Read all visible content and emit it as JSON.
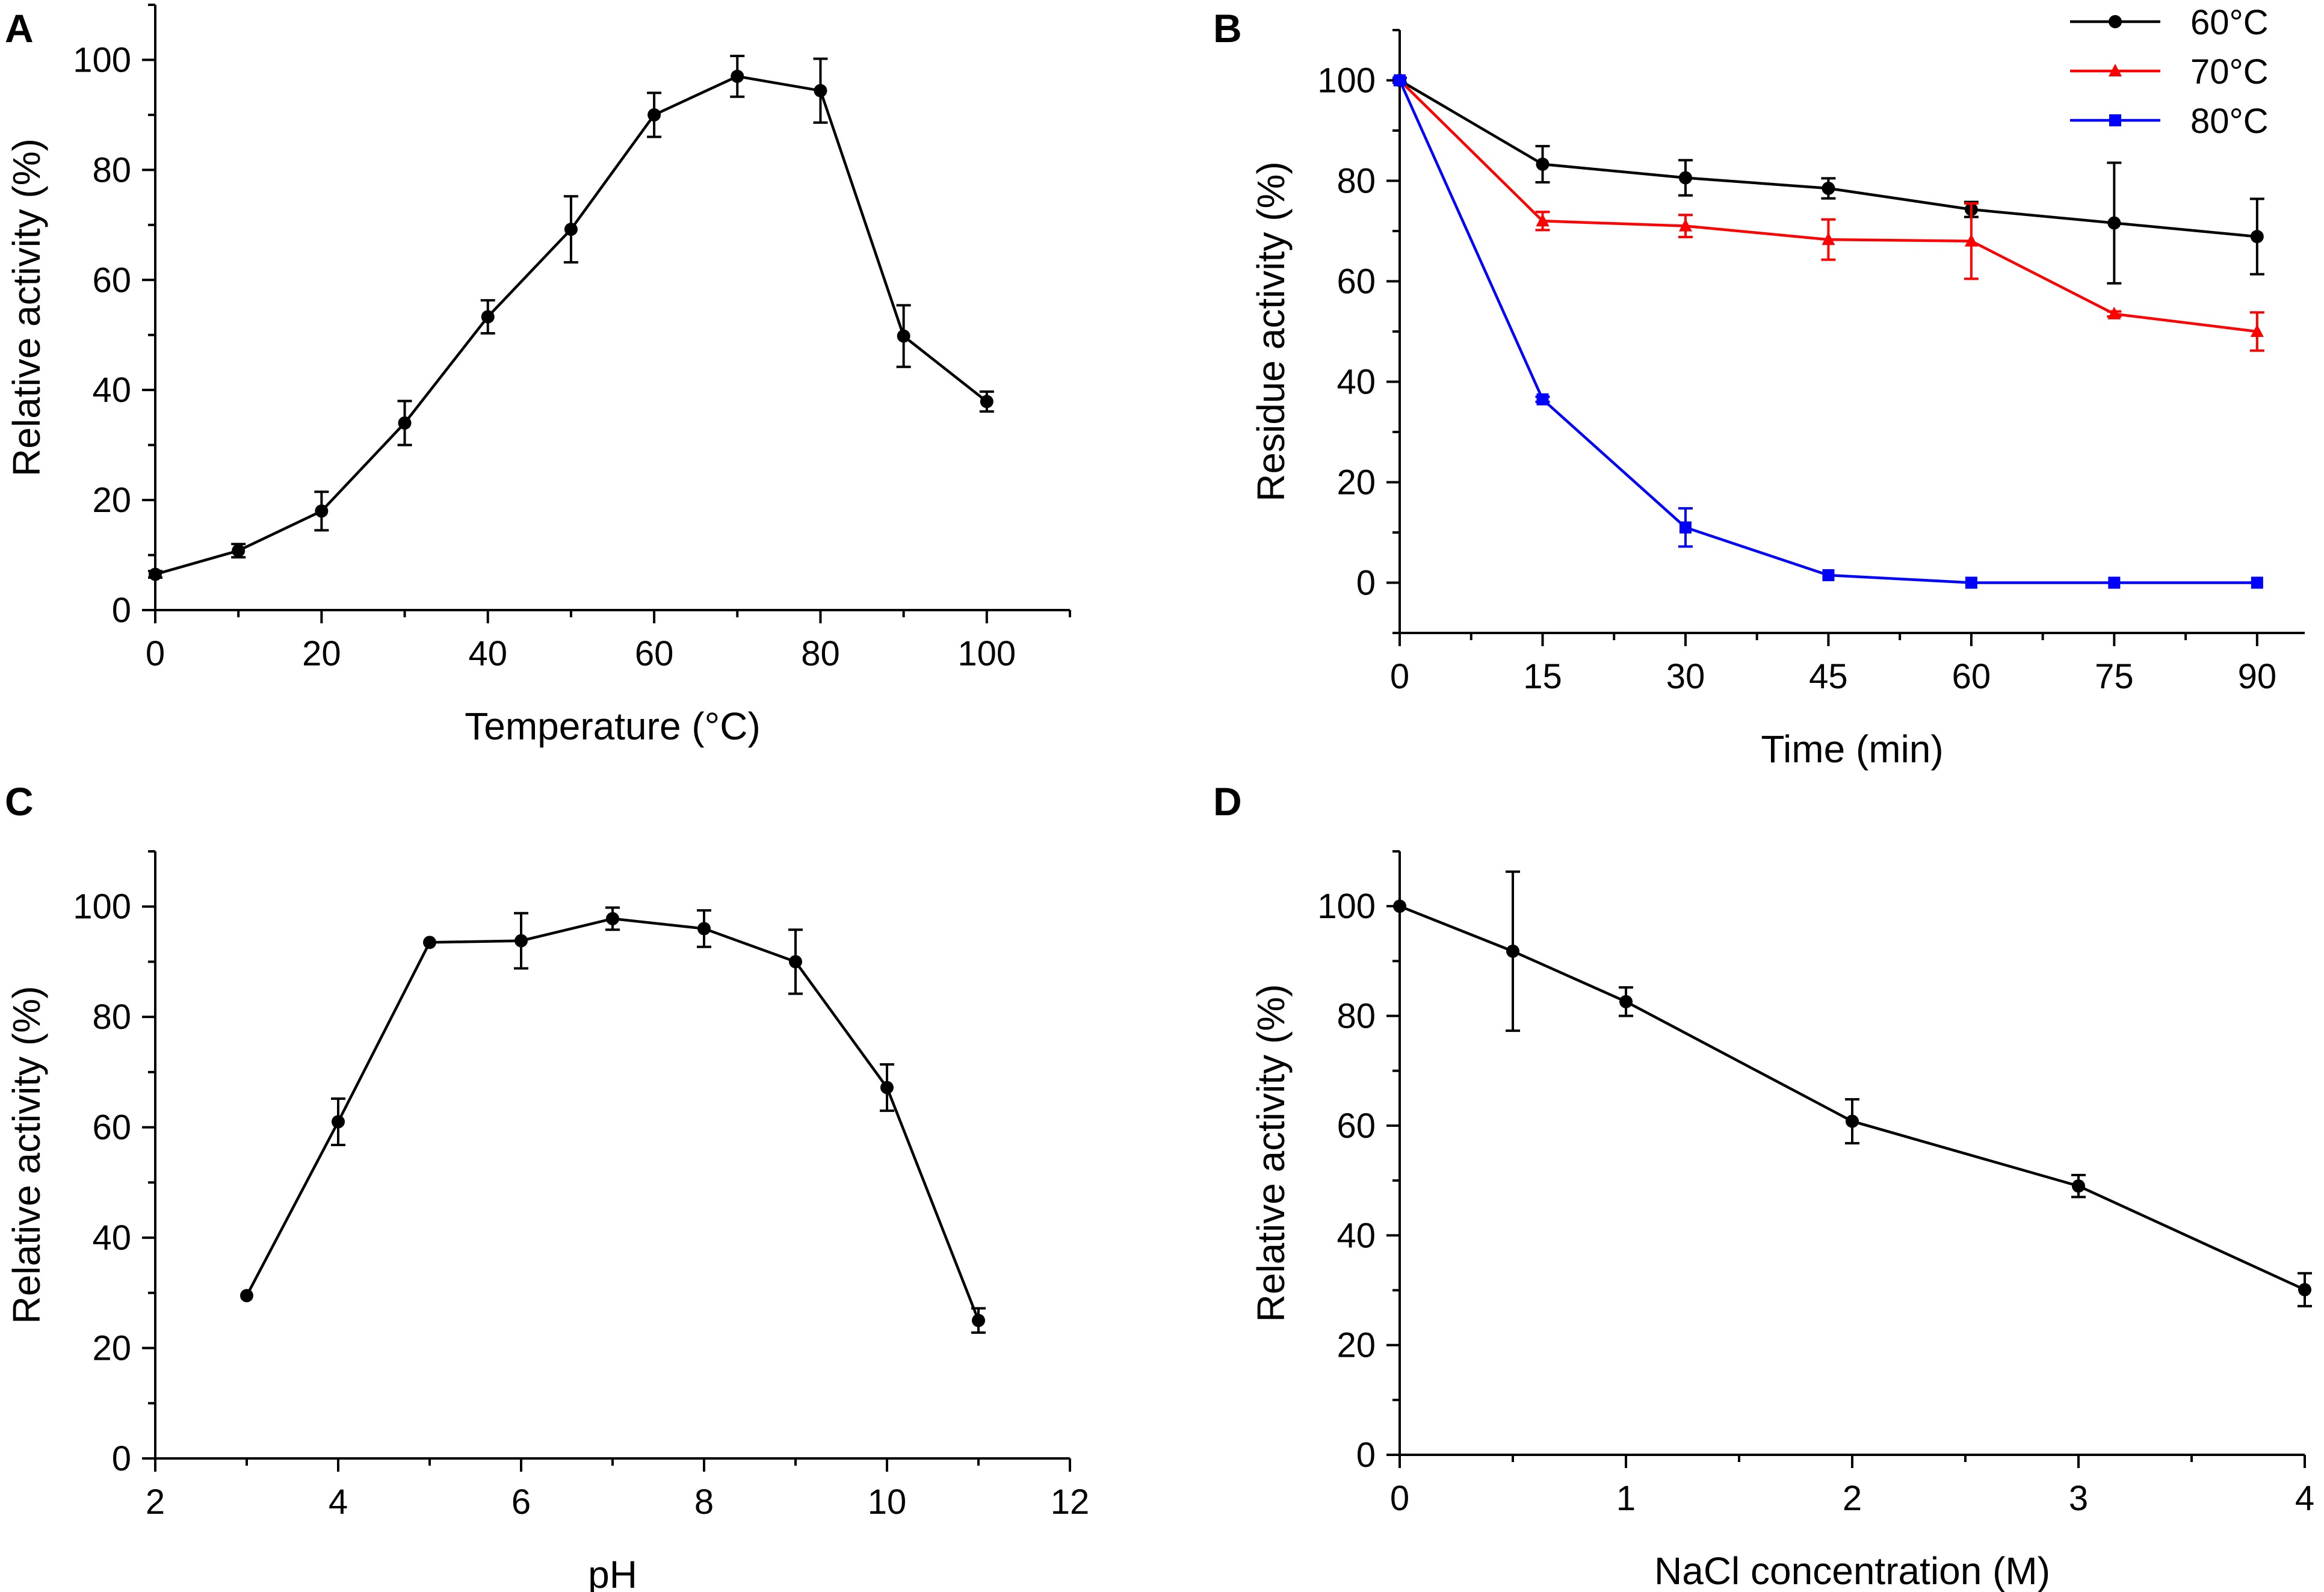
{
  "figure": {
    "panel_count": 4
  },
  "chart_data": [
    {
      "panel": "A",
      "type": "line",
      "xlabel": "Temperature (°C)",
      "ylabel": "Relative activity (%)",
      "xlim": [
        0,
        110
      ],
      "ylim": [
        0,
        110
      ],
      "xticks": [
        0,
        20,
        40,
        60,
        80,
        100
      ],
      "yticks": [
        0,
        20,
        40,
        60,
        80,
        100
      ],
      "series": [
        {
          "name": "",
          "color": "#000000",
          "marker": "circle",
          "x": [
            0,
            10,
            20,
            30,
            40,
            50,
            60,
            70,
            80,
            90,
            100
          ],
          "y": [
            6.5,
            10.8,
            18,
            34,
            53.3,
            69.2,
            90,
            97,
            94.4,
            49.8,
            37.9
          ],
          "err": [
            0.6,
            1.2,
            3.5,
            4,
            3,
            6,
            4,
            3.7,
            5.8,
            5.6,
            1.8
          ]
        }
      ]
    },
    {
      "panel": "B",
      "type": "line",
      "xlabel": "Time (min)",
      "ylabel": "Residue activity (%)",
      "xlim": [
        0,
        95
      ],
      "ylim": [
        -10,
        110
      ],
      "xticks": [
        0,
        15,
        30,
        45,
        60,
        75,
        90
      ],
      "yticks": [
        0,
        20,
        40,
        60,
        80,
        100
      ],
      "legend": "top-right",
      "series": [
        {
          "name": "60°C",
          "color": "#000000",
          "marker": "circle",
          "x": [
            0,
            15,
            30,
            45,
            60,
            75,
            90
          ],
          "y": [
            100,
            83.3,
            80.6,
            78.5,
            74.3,
            71.6,
            68.9
          ],
          "err": [
            0.5,
            3.6,
            3.5,
            2,
            1.5,
            12,
            7.5
          ]
        },
        {
          "name": "70°C",
          "color": "#ff0000",
          "marker": "triangle",
          "x": [
            0,
            15,
            30,
            45,
            60,
            75,
            90
          ],
          "y": [
            100,
            72,
            71,
            68.3,
            68,
            53.5,
            50
          ],
          "err": [
            0.5,
            1.8,
            2.2,
            4,
            7.5,
            0.5,
            3.8
          ]
        },
        {
          "name": "80°C",
          "color": "#0000ff",
          "marker": "square",
          "x": [
            0,
            15,
            30,
            45,
            60,
            75,
            90
          ],
          "y": [
            100,
            36.5,
            11,
            1.5,
            0,
            0,
            0
          ],
          "err": [
            0.5,
            0.5,
            3.8,
            0.3,
            0.2,
            0.2,
            0.2
          ]
        }
      ]
    },
    {
      "panel": "C",
      "type": "line",
      "xlabel": "pH",
      "ylabel": "Relative activity (%)",
      "xlim": [
        2,
        12
      ],
      "ylim": [
        0,
        110
      ],
      "xticks": [
        2,
        4,
        6,
        8,
        10,
        12
      ],
      "yticks": [
        0,
        20,
        40,
        60,
        80,
        100
      ],
      "series": [
        {
          "name": "",
          "color": "#000000",
          "marker": "circle",
          "x": [
            3,
            4,
            5,
            6,
            7,
            8,
            9,
            10,
            11
          ],
          "y": [
            29.5,
            61,
            93.5,
            93.8,
            97.8,
            96,
            90,
            67.2,
            25
          ],
          "err": [
            0.3,
            4.2,
            0.3,
            5,
            2,
            3.3,
            5.8,
            4.2,
            2.2
          ]
        }
      ]
    },
    {
      "panel": "D",
      "type": "line",
      "xlabel": "NaCl concentration (M)",
      "ylabel": "Relative activity (%)",
      "xlim": [
        0,
        4
      ],
      "ylim": [
        0,
        110
      ],
      "xticks": [
        0,
        1,
        2,
        3,
        4
      ],
      "yticks": [
        0,
        20,
        40,
        60,
        80,
        100
      ],
      "series": [
        {
          "name": "",
          "color": "#000000",
          "marker": "circle",
          "x": [
            0,
            0.5,
            1,
            2,
            3,
            4
          ],
          "y": [
            100,
            91.8,
            82.6,
            60.8,
            49,
            30.1
          ],
          "err": [
            0.3,
            14.5,
            2.6,
            4,
            2,
            3
          ]
        }
      ]
    }
  ]
}
